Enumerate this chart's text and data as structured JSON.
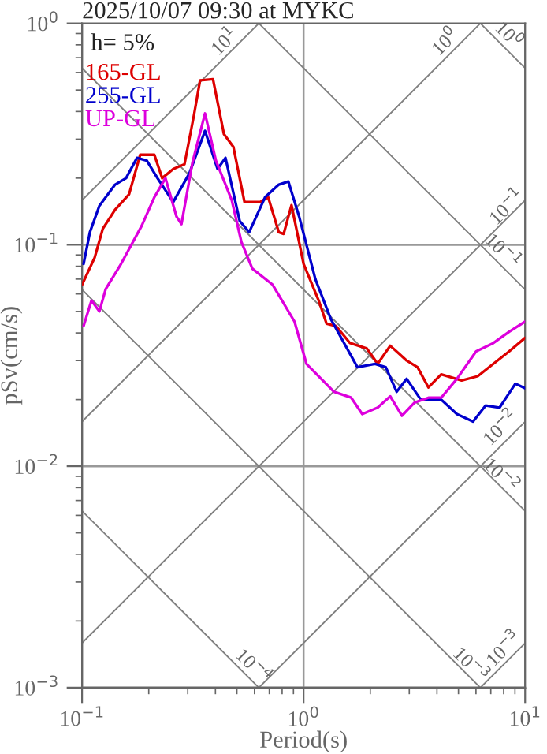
{
  "chart_data": {
    "type": "line",
    "title": "2025/10/07 09:30 at MYKC",
    "xlabel": "Period(s)",
    "ylabel": "pSv(cm/s)",
    "log": "xy",
    "xlim": [
      0.1,
      10
    ],
    "ylim": [
      0.001,
      1
    ],
    "xticks": [
      {
        "value": 0.1,
        "label": "10$^{−1}$"
      },
      {
        "value": 1,
        "label": "10$^{0}$"
      },
      {
        "value": 10,
        "label": "10$^{1}$"
      }
    ],
    "yticks": [
      {
        "value": 0.001,
        "label": "10$^{−3}$"
      },
      {
        "value": 0.01,
        "label": "10$^{−2}$"
      },
      {
        "value": 0.1,
        "label": "10$^{−1}$"
      },
      {
        "value": 1,
        "label": "10$^{0}$"
      }
    ],
    "grid": true,
    "legend": "top left",
    "line_style": "solid",
    "marker": "none",
    "series": [
      {
        "color": "#808080",
        "x": [
          0.1,
          0.628
        ],
        "values": [
          0.159,
          1
        ]
      },
      {
        "color": "#808080",
        "x": [
          0.1,
          6.28
        ],
        "values": [
          0.0159,
          1
        ]
      },
      {
        "color": "#808080",
        "x": [
          0.1,
          10
        ],
        "values": [
          0.00159,
          0.159
        ]
      },
      {
        "color": "#808080",
        "x": [
          0.628,
          10
        ],
        "values": [
          0.001,
          0.0159
        ]
      },
      {
        "color": "#808080",
        "x": [
          6.28,
          10
        ],
        "values": [
          0.001,
          0.00159
        ]
      },
      {
        "color": "#808080",
        "x": [
          6.28,
          10
        ],
        "values": [
          1,
          0.628
        ]
      },
      {
        "color": "#808080",
        "x": [
          0.628,
          10
        ],
        "values": [
          1,
          0.0628
        ]
      },
      {
        "color": "#808080",
        "x": [
          0.1,
          10
        ],
        "values": [
          0.628,
          0.00628
        ]
      },
      {
        "color": "#808080",
        "x": [
          0.1,
          6.28
        ],
        "values": [
          0.0628,
          0.001
        ]
      },
      {
        "color": "#808080",
        "x": [
          0.1,
          0.628
        ],
        "values": [
          0.00628,
          0.001
        ]
      },
      {
        "name": "165-GL",
        "color": "#dd0000",
        "x": [
          0.1,
          0.114,
          0.124,
          0.141,
          0.163,
          0.183,
          0.212,
          0.23,
          0.258,
          0.29,
          0.32,
          0.341,
          0.39,
          0.437,
          0.482,
          0.541,
          0.637,
          0.692,
          0.773,
          0.813,
          0.882,
          1.0,
          1.17,
          1.27,
          1.4,
          1.62,
          1.93,
          2.16,
          2.46,
          2.92,
          3.27,
          3.66,
          4.18,
          5.17,
          6.11,
          7.19,
          8.47,
          10
        ],
        "values": [
          0.066,
          0.0875,
          0.118,
          0.144,
          0.169,
          0.255,
          0.255,
          0.2,
          0.22,
          0.231,
          0.385,
          0.553,
          0.56,
          0.316,
          0.277,
          0.156,
          0.156,
          0.164,
          0.114,
          0.112,
          0.151,
          0.082,
          0.056,
          0.044,
          0.043,
          0.036,
          0.034,
          0.029,
          0.035,
          0.03,
          0.028,
          0.0227,
          0.026,
          0.0244,
          0.0255,
          0.029,
          0.033,
          0.038
        ]
      },
      {
        "name": "255-GL",
        "color": "#0000cc",
        "x": [
          0.1016,
          0.1085,
          0.1197,
          0.141,
          0.158,
          0.177,
          0.196,
          0.219,
          0.258,
          0.305,
          0.359,
          0.409,
          0.444,
          0.515,
          0.568,
          0.67,
          0.773,
          0.854,
          0.955,
          1.13,
          1.33,
          1.75,
          2.1,
          2.35,
          2.63,
          2.92,
          3.38,
          4.18,
          4.92,
          5.82,
          6.63,
          7.67,
          9.04,
          10
        ],
        "values": [
          0.082,
          0.114,
          0.15,
          0.187,
          0.2,
          0.247,
          0.24,
          0.2,
          0.156,
          0.21,
          0.327,
          0.22,
          0.247,
          0.128,
          0.114,
          0.164,
          0.187,
          0.193,
          0.134,
          0.07,
          0.046,
          0.028,
          0.029,
          0.028,
          0.0217,
          0.0248,
          0.02,
          0.02,
          0.0172,
          0.0159,
          0.0188,
          0.0184,
          0.0236,
          0.0225
        ]
      },
      {
        "name": "UP-GL",
        "color": "#dd00dd",
        "x": [
          0.1016,
          0.1103,
          0.1197,
          0.1278,
          0.15,
          0.186,
          0.212,
          0.238,
          0.267,
          0.281,
          0.315,
          0.359,
          0.402,
          0.474,
          0.524,
          0.587,
          0.725,
          0.91,
          1.03,
          1.37,
          1.64,
          1.84,
          2.16,
          2.46,
          2.78,
          3.17,
          3.66,
          4.18,
          4.92,
          6.01,
          7.19,
          8.47,
          10
        ],
        "values": [
          0.043,
          0.056,
          0.05,
          0.063,
          0.082,
          0.122,
          0.164,
          0.2,
          0.134,
          0.124,
          0.235,
          0.392,
          0.24,
          0.159,
          0.103,
          0.078,
          0.066,
          0.045,
          0.029,
          0.0217,
          0.0204,
          0.0172,
          0.0184,
          0.0207,
          0.0169,
          0.0194,
          0.0204,
          0.0204,
          0.0248,
          0.033,
          0.036,
          0.0405,
          0.045
        ]
      }
    ],
    "annotations": [
      "h= 5%",
      "10$^{1}$",
      "10$^{0}$",
      "10$^{0}$",
      "10$^{−1}$",
      "10$^{−1}$",
      "10$^{−2}$",
      "10$^{−2}$",
      "10$^{−4}$",
      "10$^{−3}$",
      "10$^{−3}$"
    ]
  }
}
